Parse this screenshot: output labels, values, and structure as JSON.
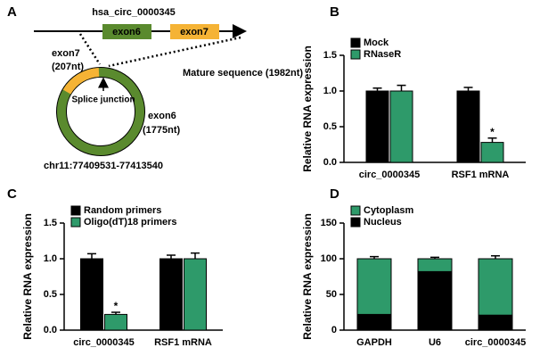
{
  "diagram": {
    "label": "A",
    "gene": "hsa_circ_0000345",
    "exon6_box": "exon6",
    "exon7_box": "exon7",
    "exon7_label": "exon7",
    "exon7_length": "(207nt)",
    "mature": "Mature sequence (1982nt)",
    "junction": "Splice junction",
    "exon6_label": "exon6",
    "exon6_length": "(1775nt)",
    "locus": "chr11:77409531-77413540"
  },
  "chart_data": [
    {
      "type": "bar",
      "label": "B",
      "ylabel": "Relative RNA expression",
      "categories": [
        "circ_0000345",
        "RSF1 mRNA"
      ],
      "series": [
        {
          "name": "Mock",
          "color": "#000000",
          "values": [
            1.0,
            1.0
          ],
          "errors": [
            0.04,
            0.05
          ]
        },
        {
          "name": "RNaseR",
          "color": "#2e9a6a",
          "values": [
            1.0,
            0.28
          ],
          "errors": [
            0.08,
            0.06
          ]
        }
      ],
      "ylim": [
        0,
        1.5
      ],
      "yticks": [
        {
          "value": 0,
          "label": "0.0"
        },
        {
          "value": 0.5,
          "label": "0.5"
        },
        {
          "value": 1,
          "label": "1.0"
        },
        {
          "value": 1.5,
          "label": "1.5"
        }
      ],
      "legend": "top-left",
      "annotations": [
        {
          "text": "*",
          "category": "RSF1 mRNA",
          "series": "RNaseR"
        }
      ]
    },
    {
      "type": "bar",
      "label": "C",
      "ylabel": "Relative RNA expression",
      "categories": [
        "circ_0000345",
        "RSF1 mRNA"
      ],
      "series": [
        {
          "name": "Random primers",
          "color": "#000000",
          "values": [
            1.0,
            1.0
          ],
          "errors": [
            0.07,
            0.05
          ]
        },
        {
          "name": "Oligo(dT)18 primers",
          "color": "#2e9a6a",
          "values": [
            0.22,
            1.0
          ],
          "errors": [
            0.03,
            0.08
          ]
        }
      ],
      "ylim": [
        0,
        1.5
      ],
      "yticks": [
        {
          "value": 0,
          "label": "0.0"
        },
        {
          "value": 0.5,
          "label": "0.5"
        },
        {
          "value": 1,
          "label": "1.0"
        },
        {
          "value": 1.5,
          "label": "1.5"
        }
      ],
      "legend": "top-left",
      "annotations": [
        {
          "text": "*",
          "category": "circ_0000345",
          "series": "Oligo(dT)18 primers"
        }
      ]
    },
    {
      "type": "bar",
      "stacked": true,
      "label": "D",
      "ylabel": "Relative RNA expression",
      "categories": [
        "GAPDH",
        "U6",
        "circ_0000345"
      ],
      "series": [
        {
          "name": "Cytoplasm",
          "color": "#2e9a6a",
          "values": [
            78,
            18,
            79
          ],
          "errors": [
            3,
            2,
            4
          ]
        },
        {
          "name": "Nucleus",
          "color": "#000000",
          "values": [
            22,
            82,
            21
          ],
          "errors": [
            4,
            2,
            5
          ]
        }
      ],
      "ylim": [
        0,
        150
      ],
      "yticks": [
        0,
        50,
        100,
        150
      ],
      "legend": "top-left"
    }
  ]
}
